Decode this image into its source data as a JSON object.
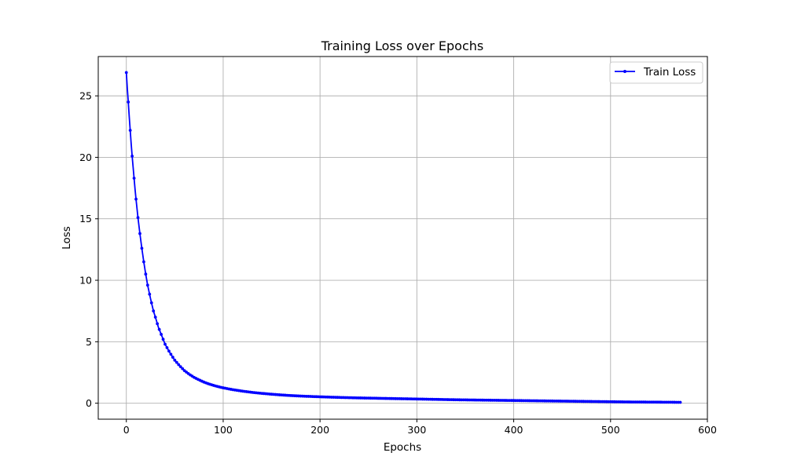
{
  "chart_data": {
    "type": "line",
    "title": "Training Loss over Epochs",
    "xlabel": "Epochs",
    "ylabel": "Loss",
    "xlim": [
      -29,
      600
    ],
    "ylim": [
      -1.3,
      28.2
    ],
    "xticks": [
      0,
      100,
      200,
      300,
      400,
      500,
      600
    ],
    "yticks": [
      0,
      5,
      10,
      15,
      20,
      25
    ],
    "grid": true,
    "legend_position": "top-right",
    "line_color": "#0000ff",
    "series": [
      {
        "name": "Train Loss",
        "x": [
          0,
          1,
          2,
          3,
          4,
          5,
          6,
          7,
          8,
          9,
          10,
          12,
          14,
          16,
          18,
          20,
          22,
          25,
          28,
          30,
          33,
          36,
          40,
          45,
          50,
          55,
          60,
          65,
          70,
          75,
          80,
          85,
          90,
          95,
          100,
          110,
          120,
          130,
          140,
          150,
          160,
          170,
          180,
          190,
          200,
          220,
          240,
          260,
          280,
          300,
          320,
          340,
          360,
          380,
          400,
          420,
          440,
          460,
          480,
          500,
          520,
          540,
          560,
          573
        ],
        "y": [
          26.9,
          25.6,
          24.5,
          23.3,
          22.2,
          21.1,
          20.1,
          19.2,
          18.3,
          17.4,
          16.6,
          15.1,
          13.8,
          12.6,
          11.5,
          10.5,
          9.6,
          8.5,
          7.5,
          7.0,
          6.2,
          5.6,
          4.8,
          4.1,
          3.5,
          3.05,
          2.65,
          2.35,
          2.1,
          1.9,
          1.72,
          1.57,
          1.45,
          1.34,
          1.25,
          1.1,
          0.98,
          0.88,
          0.8,
          0.73,
          0.67,
          0.62,
          0.58,
          0.55,
          0.52,
          0.47,
          0.43,
          0.4,
          0.37,
          0.34,
          0.31,
          0.28,
          0.26,
          0.24,
          0.22,
          0.2,
          0.18,
          0.16,
          0.14,
          0.12,
          0.1,
          0.09,
          0.08,
          0.07
        ]
      }
    ]
  }
}
